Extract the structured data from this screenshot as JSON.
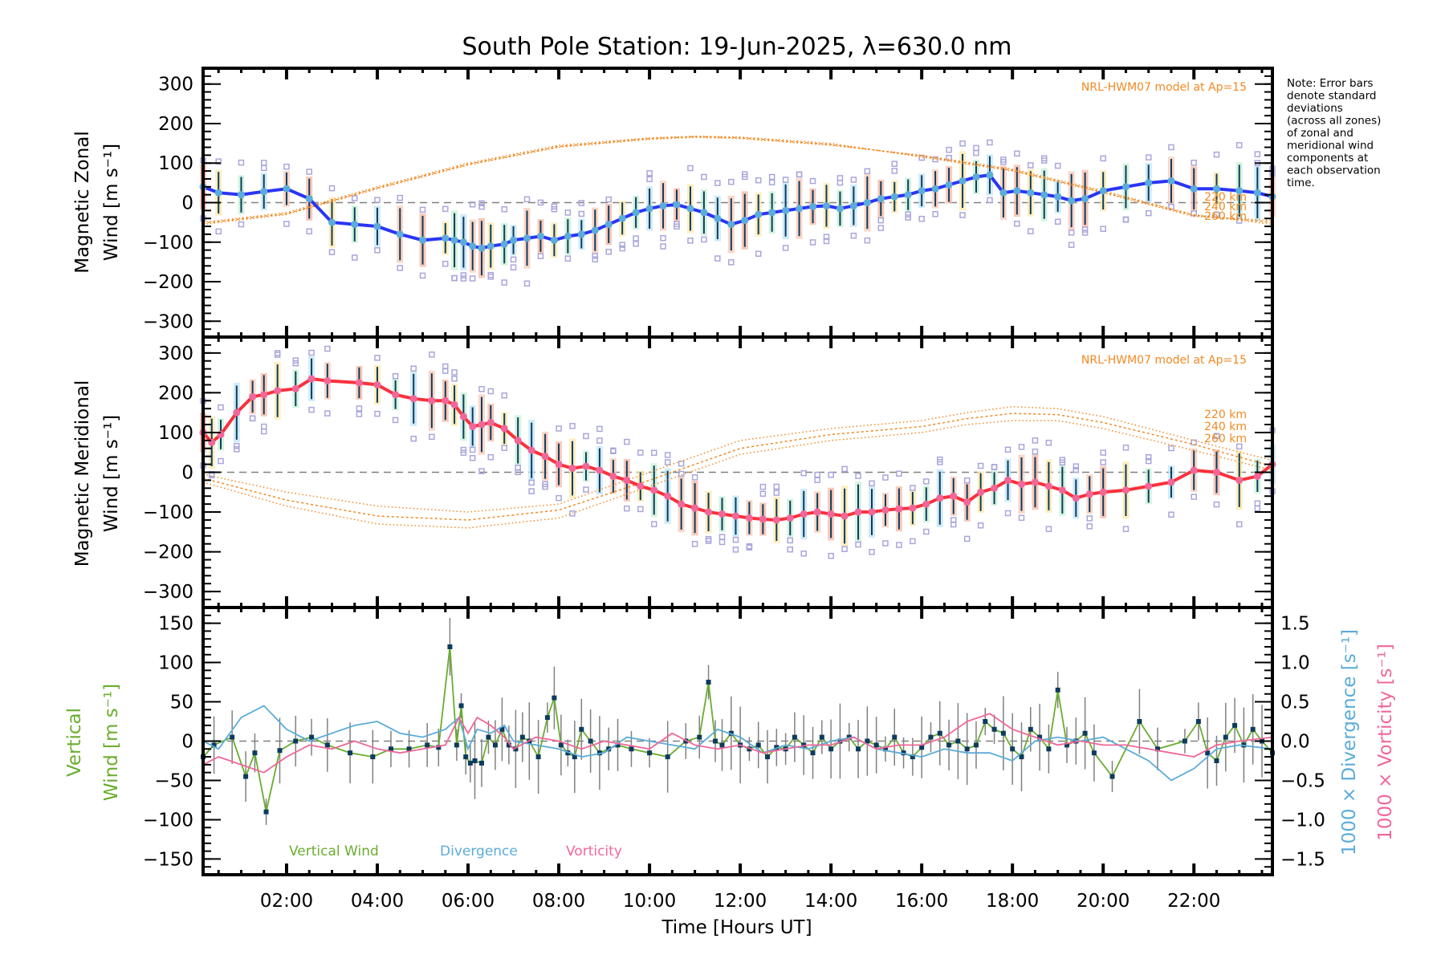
{
  "chart_data": [
    {
      "type": "line",
      "panel": "zonal",
      "title": "South Pole Station: 19-Jun-2025, λ=630.0 nm",
      "ylabel_line1": "Magnetic Zonal",
      "ylabel_line2": "Wind [m s⁻¹]",
      "ylim": [
        -340,
        340
      ],
      "yticks": [
        -300,
        -200,
        -100,
        0,
        100,
        200,
        300
      ],
      "xlim_hours": [
        0.16,
        23.73
      ],
      "model_label": "NRL-HWM07 model at Ap=15",
      "model_altitudes": [
        "220 km",
        "240 km",
        "260 km"
      ],
      "series": [
        {
          "name": "Mean zonal wind",
          "color": "#2b35f5",
          "x": [
            0.16,
            0.5,
            1.0,
            1.5,
            2.0,
            2.5,
            3.0,
            3.5,
            4.0,
            4.5,
            5.0,
            5.5,
            5.7,
            5.9,
            6.1,
            6.3,
            6.5,
            6.8,
            7.0,
            7.3,
            7.6,
            7.9,
            8.2,
            8.5,
            8.8,
            9.1,
            9.4,
            9.7,
            10.0,
            10.3,
            10.6,
            10.9,
            11.2,
            11.5,
            11.8,
            12.1,
            12.4,
            12.7,
            13.0,
            13.3,
            13.6,
            13.9,
            14.2,
            14.5,
            14.8,
            15.1,
            15.4,
            15.7,
            16.0,
            16.3,
            16.6,
            16.9,
            17.2,
            17.5,
            17.8,
            18.1,
            18.4,
            18.7,
            19.0,
            19.3,
            19.6,
            20.0,
            20.5,
            21.0,
            21.5,
            22.0,
            22.5,
            23.0,
            23.4,
            23.73
          ],
          "y": [
            40,
            25,
            20,
            28,
            35,
            10,
            -50,
            -55,
            -60,
            -80,
            -95,
            -90,
            -95,
            -100,
            -110,
            -115,
            -110,
            -105,
            -95,
            -90,
            -85,
            -95,
            -85,
            -80,
            -70,
            -55,
            -40,
            -25,
            -15,
            -8,
            -5,
            -15,
            -25,
            -40,
            -55,
            -45,
            -30,
            -25,
            -20,
            -15,
            -10,
            -8,
            -15,
            -8,
            0,
            10,
            15,
            20,
            30,
            35,
            45,
            55,
            65,
            70,
            25,
            30,
            25,
            20,
            15,
            5,
            10,
            30,
            40,
            50,
            55,
            35,
            35,
            30,
            25,
            15
          ]
        }
      ],
      "model_curves": [
        {
          "name": "220 km",
          "x": [
            0.16,
            2,
            4,
            6,
            8,
            10,
            11,
            12,
            14,
            16,
            18,
            20,
            22,
            23.73
          ],
          "y": [
            -55,
            -30,
            35,
            95,
            140,
            160,
            165,
            162,
            145,
            120,
            85,
            30,
            -30,
            -55
          ]
        },
        {
          "name": "240 km",
          "x": [
            0.16,
            2,
            4,
            6,
            8,
            10,
            11,
            12,
            14,
            16,
            18,
            20,
            22,
            23.73
          ],
          "y": [
            -52,
            -28,
            37,
            97,
            142,
            162,
            167,
            164,
            147,
            118,
            82,
            27,
            -32,
            -50
          ]
        },
        {
          "name": "260 km",
          "x": [
            0.16,
            2,
            4,
            6,
            8,
            10,
            11,
            12,
            14,
            16,
            18,
            20,
            22,
            23.73
          ],
          "y": [
            -50,
            -25,
            40,
            100,
            145,
            164,
            168,
            166,
            150,
            115,
            80,
            25,
            -35,
            -45
          ]
        }
      ]
    },
    {
      "type": "line",
      "panel": "meridional",
      "ylabel_line1": "Magnetic Meridional",
      "ylabel_line2": "Wind [m s⁻¹]",
      "ylim": [
        -340,
        340
      ],
      "yticks": [
        -300,
        -200,
        -100,
        0,
        100,
        200,
        300
      ],
      "xlim_hours": [
        0.16,
        23.73
      ],
      "model_label": "NRL-HWM07 model at Ap=15",
      "model_altitudes": [
        "220 km",
        "240 km",
        "260 km"
      ],
      "series": [
        {
          "name": "Mean meridional wind",
          "color": "#f8323c",
          "x": [
            0.16,
            0.35,
            0.55,
            0.9,
            1.25,
            1.5,
            1.8,
            2.2,
            2.55,
            2.9,
            3.6,
            4.0,
            4.4,
            4.8,
            5.2,
            5.5,
            5.7,
            5.9,
            6.1,
            6.3,
            6.5,
            6.8,
            7.1,
            7.4,
            7.7,
            8.0,
            8.3,
            8.6,
            8.9,
            9.2,
            9.5,
            9.8,
            10.1,
            10.4,
            10.7,
            11.0,
            11.3,
            11.6,
            11.9,
            12.2,
            12.5,
            12.8,
            13.1,
            13.4,
            13.7,
            14.0,
            14.3,
            14.6,
            14.9,
            15.2,
            15.5,
            15.8,
            16.1,
            16.4,
            16.7,
            17.0,
            17.3,
            17.6,
            17.9,
            18.2,
            18.5,
            18.8,
            19.1,
            19.4,
            19.7,
            20.0,
            20.5,
            21.0,
            21.5,
            22.0,
            22.5,
            23.0,
            23.4,
            23.73
          ],
          "y": [
            100,
            75,
            95,
            150,
            190,
            195,
            205,
            210,
            235,
            230,
            225,
            220,
            195,
            185,
            180,
            180,
            170,
            140,
            115,
            120,
            125,
            110,
            80,
            55,
            40,
            20,
            10,
            15,
            5,
            -10,
            -20,
            -35,
            -45,
            -60,
            -80,
            -90,
            -100,
            -105,
            -110,
            -115,
            -118,
            -120,
            -115,
            -105,
            -100,
            -105,
            -110,
            -100,
            -100,
            -95,
            -92,
            -90,
            -80,
            -65,
            -60,
            -75,
            -50,
            -40,
            -20,
            -30,
            -25,
            -35,
            -45,
            -65,
            -55,
            -50,
            -45,
            -35,
            -25,
            5,
            0,
            -20,
            -10,
            20
          ]
        }
      ],
      "model_curves": [
        {
          "name": "220 km",
          "x": [
            0.16,
            2,
            4,
            6,
            8,
            10,
            12,
            14,
            16,
            17,
            18,
            19,
            20,
            22,
            23.73
          ],
          "y": [
            -5,
            -50,
            -85,
            -100,
            -80,
            0,
            80,
            110,
            130,
            150,
            165,
            160,
            140,
            80,
            30
          ]
        },
        {
          "name": "240 km",
          "x": [
            0.16,
            2,
            4,
            6,
            8,
            10,
            12,
            14,
            16,
            17,
            18,
            19,
            20,
            22,
            23.73
          ],
          "y": [
            -15,
            -70,
            -110,
            -120,
            -95,
            -20,
            60,
            95,
            115,
            135,
            148,
            145,
            125,
            70,
            15
          ]
        },
        {
          "name": "260 km",
          "x": [
            0.16,
            2,
            4,
            6,
            8,
            10,
            12,
            14,
            16,
            17,
            18,
            19,
            20,
            22,
            23.73
          ],
          "y": [
            -25,
            -85,
            -130,
            -140,
            -115,
            -35,
            45,
            80,
            100,
            120,
            130,
            130,
            110,
            55,
            5
          ]
        }
      ]
    },
    {
      "type": "line",
      "panel": "vertical",
      "ylabel_line1": "Vertical",
      "ylabel_line2": "Wind [m s⁻¹]",
      "ylim": [
        -170,
        170
      ],
      "yticks": [
        -150,
        -100,
        -50,
        0,
        50,
        100,
        150
      ],
      "y2label_divergence": "1000 × Divergence [s⁻¹]",
      "y2label_vorticity": "1000 × Vorticity [s⁻¹]",
      "y2lim": [
        -1.7,
        1.7
      ],
      "y2ticks": [
        "−1.5",
        "−1.0",
        "−0.5",
        "0.0",
        "0.5",
        "1.0",
        "1.5"
      ],
      "xlabel": "Time [Hours UT]",
      "xticks": [
        "02:00",
        "04:00",
        "06:00",
        "08:00",
        "10:00",
        "12:00",
        "14:00",
        "16:00",
        "18:00",
        "20:00",
        "22:00"
      ],
      "xlim_hours": [
        0.16,
        23.73
      ],
      "legend": [
        {
          "label": "Vertical Wind",
          "color": "#6aad2f"
        },
        {
          "label": "Divergence",
          "color": "#5bacd8"
        },
        {
          "label": "Vorticity",
          "color": "#f0679a"
        }
      ],
      "series": [
        {
          "name": "Vertical Wind",
          "color": "#6aad2f",
          "x": [
            0.16,
            0.4,
            0.8,
            1.1,
            1.3,
            1.55,
            1.85,
            2.2,
            2.55,
            2.9,
            3.4,
            3.9,
            4.3,
            4.7,
            5.1,
            5.35,
            5.6,
            5.75,
            5.85,
            5.95,
            6.05,
            6.15,
            6.3,
            6.45,
            6.6,
            6.75,
            6.9,
            7.05,
            7.2,
            7.35,
            7.55,
            7.75,
            7.9,
            8.05,
            8.2,
            8.35,
            8.5,
            8.7,
            8.9,
            9.1,
            9.3,
            9.6,
            10.0,
            10.4,
            10.8,
            11.1,
            11.3,
            11.45,
            11.6,
            11.8,
            12.0,
            12.2,
            12.4,
            12.6,
            12.8,
            13.0,
            13.2,
            13.4,
            13.6,
            13.8,
            14.0,
            14.2,
            14.4,
            14.6,
            14.8,
            15.0,
            15.2,
            15.4,
            15.6,
            15.8,
            16.0,
            16.2,
            16.4,
            16.6,
            16.8,
            17.0,
            17.2,
            17.4,
            17.6,
            17.8,
            18.0,
            18.2,
            18.4,
            18.6,
            18.8,
            19.0,
            19.2,
            19.4,
            19.6,
            19.8,
            20.2,
            20.8,
            21.2,
            21.8,
            22.1,
            22.3,
            22.5,
            22.7,
            22.9,
            23.1,
            23.3,
            23.5,
            23.73
          ],
          "y": [
            -20,
            -5,
            5,
            -45,
            -15,
            -90,
            -12,
            0,
            5,
            -5,
            -15,
            -20,
            -10,
            -10,
            -5,
            -8,
            120,
            -5,
            45,
            -20,
            -28,
            -25,
            -28,
            5,
            -5,
            15,
            -5,
            -10,
            5,
            0,
            -20,
            30,
            55,
            -5,
            -15,
            -20,
            15,
            0,
            -15,
            -10,
            -5,
            -10,
            -15,
            -20,
            0,
            5,
            75,
            0,
            -5,
            10,
            -5,
            -10,
            -5,
            -20,
            -8,
            -10,
            5,
            -5,
            -15,
            5,
            -10,
            0,
            5,
            -10,
            0,
            -5,
            -10,
            5,
            -15,
            -20,
            -8,
            5,
            10,
            -5,
            0,
            -10,
            -5,
            25,
            15,
            10,
            -10,
            -20,
            15,
            5,
            -10,
            65,
            -5,
            0,
            10,
            -15,
            -45,
            25,
            -10,
            0,
            25,
            -15,
            -25,
            5,
            20,
            -5,
            15,
            0,
            -15
          ]
        },
        {
          "name": "Divergence",
          "color": "#5bacd8",
          "axis": "right",
          "x": [
            0.16,
            0.5,
            1.0,
            1.5,
            2.0,
            2.5,
            3.0,
            3.5,
            4.0,
            4.5,
            5.0,
            5.5,
            5.8,
            6.0,
            6.2,
            6.5,
            6.8,
            7.0,
            7.5,
            8.0,
            8.5,
            9.0,
            9.5,
            10.0,
            10.5,
            11.0,
            11.5,
            12.0,
            12.5,
            13.0,
            13.5,
            14.0,
            14.5,
            15.0,
            15.5,
            16.0,
            16.5,
            17.0,
            17.5,
            18.0,
            18.5,
            19.0,
            19.5,
            20.0,
            20.5,
            21.0,
            21.5,
            22.0,
            22.5,
            23.0,
            23.73
          ],
          "y": [
            0.0,
            -0.1,
            0.3,
            0.45,
            0.15,
            0.0,
            0.1,
            0.2,
            0.25,
            0.1,
            0.05,
            0.15,
            0.3,
            -0.1,
            0.15,
            0.1,
            0.2,
            0.0,
            -0.05,
            -0.1,
            -0.2,
            -0.15,
            0.05,
            0.0,
            -0.05,
            -0.1,
            0.15,
            0.05,
            -0.15,
            -0.05,
            -0.1,
            0.0,
            0.05,
            -0.1,
            -0.15,
            -0.2,
            -0.1,
            -0.15,
            -0.15,
            -0.25,
            0.0,
            0.05,
            0.0,
            0.05,
            -0.1,
            -0.25,
            -0.5,
            -0.35,
            -0.1,
            -0.05,
            -0.1
          ]
        },
        {
          "name": "Vorticity",
          "color": "#f0679a",
          "axis": "right",
          "x": [
            0.16,
            0.5,
            1.0,
            1.5,
            2.0,
            2.5,
            3.0,
            3.5,
            4.0,
            4.5,
            5.0,
            5.5,
            5.8,
            6.0,
            6.2,
            6.5,
            6.8,
            7.0,
            7.5,
            8.0,
            8.5,
            9.0,
            9.5,
            10.0,
            10.5,
            11.0,
            11.5,
            12.0,
            12.5,
            13.0,
            13.5,
            14.0,
            14.5,
            15.0,
            15.5,
            16.0,
            16.5,
            17.0,
            17.5,
            18.0,
            18.5,
            19.0,
            19.5,
            20.0,
            20.5,
            21.0,
            21.5,
            22.0,
            22.5,
            23.0,
            23.73
          ],
          "y": [
            -0.3,
            -0.2,
            -0.3,
            -0.4,
            -0.2,
            -0.05,
            -0.1,
            0.0,
            -0.1,
            -0.15,
            -0.1,
            -0.05,
            0.3,
            0.1,
            0.3,
            0.2,
            0.05,
            -0.1,
            0.05,
            0.0,
            -0.1,
            0.0,
            -0.05,
            -0.1,
            0.1,
            -0.05,
            -0.1,
            -0.05,
            -0.15,
            -0.1,
            -0.05,
            -0.05,
            0.05,
            -0.1,
            -0.05,
            -0.05,
            0.05,
            0.25,
            0.35,
            0.15,
            0.05,
            -0.05,
            0.0,
            -0.05,
            -0.05,
            -0.1,
            -0.15,
            -0.2,
            -0.05,
            0.0,
            0.05
          ]
        }
      ]
    }
  ],
  "note": {
    "lines": [
      "Note: Error bars",
      "denote standard",
      "deviations",
      "(across all zones)",
      "of zonal and",
      "meridional wind",
      "components at",
      "each observation",
      "time."
    ]
  }
}
